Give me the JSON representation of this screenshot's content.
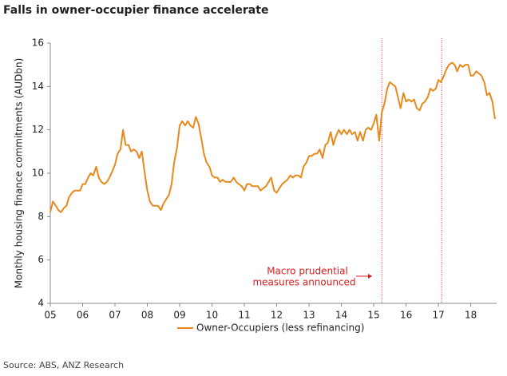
{
  "chart_data": {
    "type": "line",
    "title": "Falls in owner-occupier finance accelerate",
    "ylabel": "Monthly housing finance commitments (AUDbn)",
    "source": "Source: ABS, ANZ Research",
    "annotation_lines": [
      "Macro prudential",
      "measures announced"
    ],
    "vlines": [
      15.25,
      17.1
    ],
    "vline_color": "#e0303a",
    "xlim": [
      5,
      18.8
    ],
    "xticks": [
      {
        "value": 5,
        "label": "05"
      },
      {
        "value": 6,
        "label": "06"
      },
      {
        "value": 7,
        "label": "07"
      },
      {
        "value": 8,
        "label": "08"
      },
      {
        "value": 9,
        "label": "09"
      },
      10,
      11,
      12,
      13,
      14,
      15,
      16,
      17,
      18
    ],
    "ylim": [
      4,
      16
    ],
    "yticks": [
      4,
      6,
      8,
      10,
      12,
      14,
      16
    ],
    "grid": false,
    "x": [
      5.0,
      5.08,
      5.17,
      5.25,
      5.33,
      5.42,
      5.5,
      5.58,
      5.67,
      5.75,
      5.83,
      5.92,
      6.0,
      6.08,
      6.17,
      6.25,
      6.33,
      6.42,
      6.5,
      6.58,
      6.67,
      6.75,
      6.83,
      6.92,
      7.0,
      7.08,
      7.17,
      7.25,
      7.33,
      7.42,
      7.5,
      7.58,
      7.67,
      7.75,
      7.83,
      7.92,
      8.0,
      8.08,
      8.17,
      8.25,
      8.33,
      8.42,
      8.5,
      8.58,
      8.67,
      8.75,
      8.83,
      8.92,
      9.0,
      9.08,
      9.17,
      9.25,
      9.33,
      9.42,
      9.5,
      9.58,
      9.67,
      9.75,
      9.83,
      9.92,
      10.0,
      10.08,
      10.17,
      10.25,
      10.33,
      10.42,
      10.5,
      10.58,
      10.67,
      10.75,
      10.83,
      10.92,
      11.0,
      11.08,
      11.17,
      11.25,
      11.33,
      11.42,
      11.5,
      11.58,
      11.67,
      11.75,
      11.83,
      11.92,
      12.0,
      12.08,
      12.17,
      12.25,
      12.33,
      12.42,
      12.5,
      12.58,
      12.67,
      12.75,
      12.83,
      12.92,
      13.0,
      13.08,
      13.17,
      13.25,
      13.33,
      13.42,
      13.5,
      13.58,
      13.67,
      13.75,
      13.83,
      13.92,
      14.0,
      14.08,
      14.17,
      14.25,
      14.33,
      14.42,
      14.5,
      14.58,
      14.67,
      14.75,
      14.83,
      14.92,
      15.0,
      15.08,
      15.17,
      15.25,
      15.33,
      15.42,
      15.5,
      15.58,
      15.67,
      15.75,
      15.83,
      15.92,
      16.0,
      16.08,
      16.17,
      16.25,
      16.33,
      16.42,
      16.5,
      16.58,
      16.67,
      16.75,
      16.83,
      16.92,
      17.0,
      17.08,
      17.17,
      17.25,
      17.33,
      17.42,
      17.5,
      17.58,
      17.67,
      17.75,
      17.83,
      17.92,
      18.0,
      18.08,
      18.17,
      18.25,
      18.33,
      18.42,
      18.5,
      18.58,
      18.67,
      18.75
    ],
    "series": [
      {
        "name": "Owner-Occupiers (less refinancing)",
        "color": "#e8891c",
        "values": [
          8.2,
          8.7,
          8.5,
          8.3,
          8.2,
          8.4,
          8.5,
          8.9,
          9.1,
          9.2,
          9.2,
          9.2,
          9.5,
          9.5,
          9.8,
          10.0,
          9.9,
          10.3,
          9.8,
          9.6,
          9.5,
          9.6,
          9.8,
          10.1,
          10.4,
          10.9,
          11.1,
          12.0,
          11.3,
          11.3,
          11.0,
          11.1,
          11.0,
          10.7,
          11.0,
          10.0,
          9.2,
          8.7,
          8.5,
          8.5,
          8.5,
          8.3,
          8.6,
          8.8,
          9.0,
          9.5,
          10.5,
          11.2,
          12.2,
          12.4,
          12.2,
          12.4,
          12.2,
          12.1,
          12.6,
          12.3,
          11.6,
          10.9,
          10.5,
          10.3,
          9.9,
          9.8,
          9.8,
          9.6,
          9.7,
          9.6,
          9.6,
          9.6,
          9.8,
          9.6,
          9.5,
          9.4,
          9.2,
          9.5,
          9.5,
          9.4,
          9.4,
          9.4,
          9.2,
          9.3,
          9.4,
          9.6,
          9.8,
          9.2,
          9.1,
          9.3,
          9.5,
          9.6,
          9.7,
          9.9,
          9.8,
          9.9,
          9.9,
          9.8,
          10.3,
          10.5,
          10.8,
          10.8,
          10.9,
          10.9,
          11.1,
          10.7,
          11.3,
          11.4,
          11.9,
          11.3,
          11.7,
          12.0,
          11.8,
          12.0,
          11.8,
          12.0,
          11.8,
          11.9,
          11.5,
          11.9,
          11.5,
          12.0,
          12.1,
          12.0,
          12.3,
          12.7,
          11.5,
          12.8,
          13.2,
          13.9,
          14.2,
          14.1,
          14.0,
          13.5,
          13.0,
          13.7,
          13.3,
          13.4,
          13.3,
          13.4,
          13.0,
          12.9,
          13.2,
          13.3,
          13.5,
          13.9,
          13.8,
          13.9,
          14.3,
          14.2,
          14.5,
          14.8,
          15.0,
          15.1,
          15.0,
          14.7,
          15.0,
          14.9,
          15.0,
          15.0,
          14.5,
          14.5,
          14.7,
          14.6,
          14.5,
          14.2,
          13.6,
          13.7,
          13.3,
          12.5
        ]
      }
    ]
  }
}
